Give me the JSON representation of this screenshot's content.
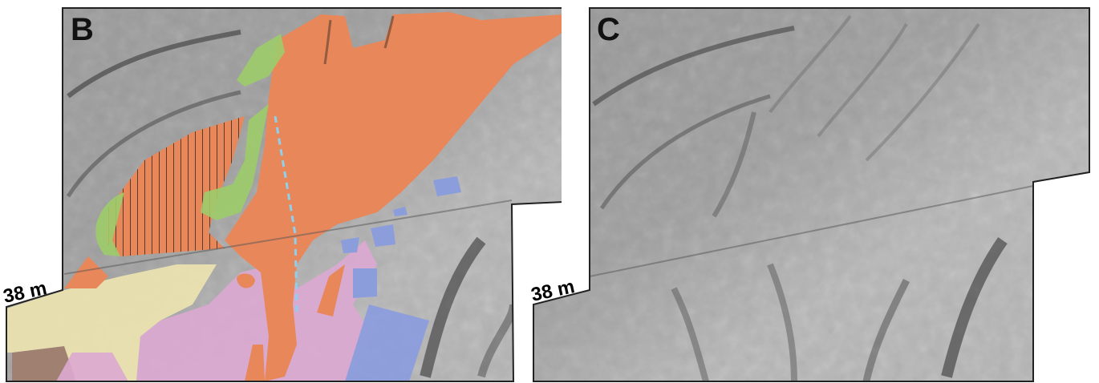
{
  "panels": [
    {
      "letter": "B",
      "scale_label": "38 m",
      "mapped_units": [
        {
          "name": "unit-orange",
          "color": "#e8875a"
        },
        {
          "name": "unit-orange-hatched",
          "color": "#e8875a",
          "pattern": "vertical-lines"
        },
        {
          "name": "unit-green",
          "color": "#9ccc6a"
        },
        {
          "name": "unit-yellow",
          "color": "#ebe3b0"
        },
        {
          "name": "unit-pink",
          "color": "#dca8d2"
        },
        {
          "name": "unit-blue",
          "color": "#8c9ddc"
        },
        {
          "name": "unit-brown",
          "color": "#a08070"
        }
      ],
      "dashed_line_color": "#8fd0ee",
      "background": "hillshade"
    },
    {
      "letter": "C",
      "scale_label": "38 m",
      "background": "hillshade"
    }
  ]
}
